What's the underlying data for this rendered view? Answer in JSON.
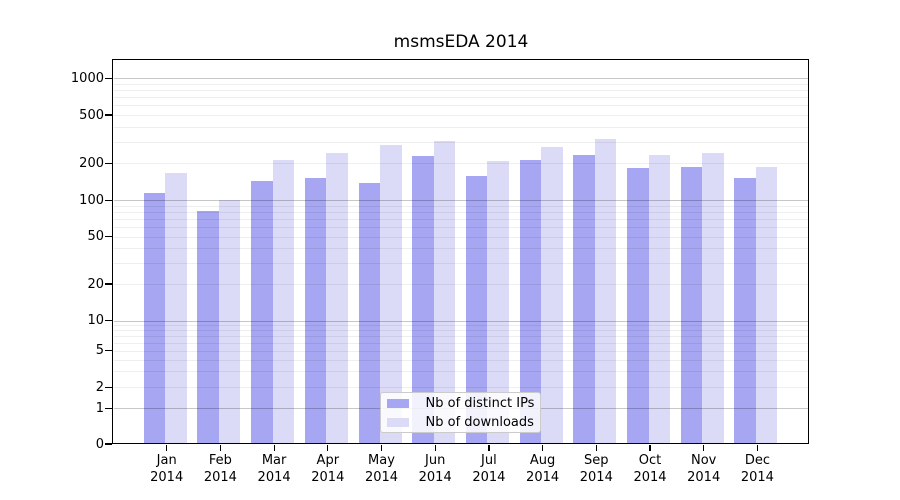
{
  "title": "msmsEDA 2014",
  "colors": {
    "distinct_ips_bar": "#a6a6f2",
    "downloads_bar": "#dbdbf8",
    "axis": "#000000",
    "major_gridline": "#c6c6c6",
    "minor_gridline": "#ececec",
    "background": "#ffffff"
  },
  "chart_data": {
    "type": "bar",
    "title": "msmsEDA 2014",
    "categories": [
      "Jan 2014",
      "Feb 2014",
      "Mar 2014",
      "Apr 2014",
      "May 2014",
      "Jun 2014",
      "Jul 2014",
      "Aug 2014",
      "Sep 2014",
      "Oct 2014",
      "Nov 2014",
      "Dec 2014"
    ],
    "month_labels": [
      "Jan",
      "Feb",
      "Mar",
      "Apr",
      "May",
      "Jun",
      "Jul",
      "Aug",
      "Sep",
      "Oct",
      "Nov",
      "Dec"
    ],
    "year_label": "2014",
    "series": [
      {
        "name": "Nb of distinct IPs",
        "color": "#a6a6f2",
        "values": [
          114,
          81,
          143,
          153,
          139,
          230,
          158,
          213,
          235,
          182,
          188,
          151
        ]
      },
      {
        "name": "Nb of downloads",
        "color": "#dbdbf8",
        "values": [
          166,
          100,
          213,
          245,
          285,
          303,
          209,
          274,
          317,
          232,
          243,
          188
        ]
      }
    ],
    "xlabel": "",
    "ylabel": "",
    "y_ticks": [
      0,
      1,
      2,
      5,
      10,
      20,
      50,
      100,
      200,
      500,
      1000
    ],
    "y_scale": "log-like (compressed toward zero)",
    "ylim": [
      0,
      1200
    ],
    "grid": "horizontal major and minor gridlines, drawn over bars",
    "legend_position": "bottom-center inside plot"
  }
}
